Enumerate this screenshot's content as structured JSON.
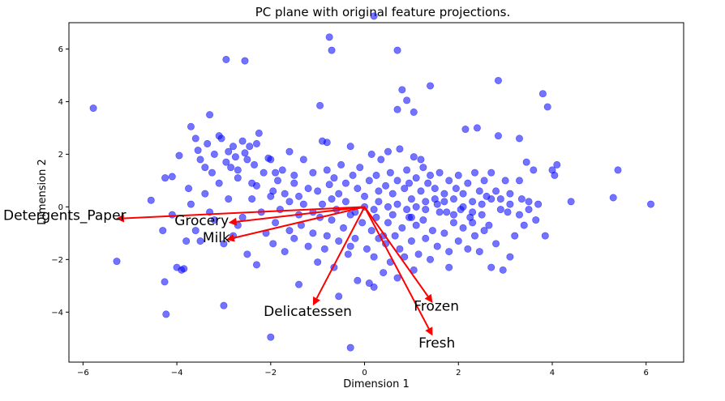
{
  "chart_data": {
    "type": "scatter",
    "title": "PC plane with original feature projections.",
    "xlabel": "Dimension 1",
    "ylabel": "Dimension 2",
    "xlim": [
      -6.3,
      6.8
    ],
    "ylim": [
      -5.9,
      7.0
    ],
    "xticks": [
      -6,
      -4,
      -2,
      0,
      2,
      4,
      6
    ],
    "yticks": [
      -4,
      -2,
      0,
      2,
      4,
      6
    ],
    "grid": false,
    "point_color": "#0000ff",
    "arrow_color": "#ff0000",
    "points": [
      [
        -5.78,
        3.75
      ],
      [
        -5.28,
        -2.07
      ],
      [
        -4.55,
        0.25
      ],
      [
        -4.26,
        -2.85
      ],
      [
        -4.23,
        -4.08
      ],
      [
        -4.25,
        1.1
      ],
      [
        -4.1,
        1.15
      ],
      [
        -4.0,
        -2.3
      ],
      [
        -3.9,
        -2.4
      ],
      [
        -3.85,
        -2.35
      ],
      [
        -3.95,
        1.95
      ],
      [
        -3.75,
        0.7
      ],
      [
        -3.7,
        3.05
      ],
      [
        -3.6,
        2.6
      ],
      [
        -3.55,
        2.15
      ],
      [
        -3.5,
        1.8
      ],
      [
        -3.4,
        1.5
      ],
      [
        -3.35,
        2.4
      ],
      [
        -3.3,
        3.5
      ],
      [
        -3.25,
        1.3
      ],
      [
        -3.2,
        2.0
      ],
      [
        -3.1,
        2.7
      ],
      [
        -3.05,
        2.6
      ],
      [
        -2.95,
        1.7
      ],
      [
        -2.9,
        2.1
      ],
      [
        -2.85,
        1.5
      ],
      [
        -2.8,
        2.3
      ],
      [
        -2.75,
        1.9
      ],
      [
        -2.7,
        1.4
      ],
      [
        -2.6,
        2.5
      ],
      [
        -2.55,
        2.05
      ],
      [
        -2.5,
        1.8
      ],
      [
        -2.45,
        2.3
      ],
      [
        -2.4,
        0.9
      ],
      [
        -2.35,
        1.6
      ],
      [
        -2.3,
        2.4
      ],
      [
        -2.25,
        2.8
      ],
      [
        -2.15,
        1.3
      ],
      [
        -2.05,
        1.85
      ],
      [
        -2.0,
        1.8
      ],
      [
        -1.95,
        0.6
      ],
      [
        -1.85,
        1.0
      ],
      [
        -1.75,
        1.4
      ],
      [
        -1.7,
        0.5
      ],
      [
        -1.6,
        2.1
      ],
      [
        -1.5,
        1.2
      ],
      [
        -1.4,
        0.4
      ],
      [
        -1.3,
        1.8
      ],
      [
        -1.2,
        0.7
      ],
      [
        -1.1,
        1.3
      ],
      [
        -1.0,
        0.6
      ],
      [
        -0.9,
        2.5
      ],
      [
        -0.8,
        1.4
      ],
      [
        -0.75,
        0.85
      ],
      [
        -0.65,
        1.1
      ],
      [
        -0.55,
        0.5
      ],
      [
        -0.5,
        1.6
      ],
      [
        -0.4,
        0.9
      ],
      [
        -0.3,
        2.3
      ],
      [
        -0.25,
        1.2
      ],
      [
        -0.15,
        0.7
      ],
      [
        -0.1,
        1.5
      ],
      [
        0.0,
        0.4
      ],
      [
        0.1,
        1.0
      ],
      [
        0.15,
        2.0
      ],
      [
        0.25,
        1.2
      ],
      [
        0.3,
        0.6
      ],
      [
        0.35,
        1.8
      ],
      [
        0.45,
        0.8
      ],
      [
        0.5,
        2.1
      ],
      [
        0.55,
        1.3
      ],
      [
        0.6,
        0.5
      ],
      [
        0.7,
        1.0
      ],
      [
        0.75,
        2.2
      ],
      [
        0.85,
        0.7
      ],
      [
        0.9,
        1.4
      ],
      [
        0.95,
        0.9
      ],
      [
        1.0,
        0.3
      ],
      [
        1.05,
        1.9
      ],
      [
        1.1,
        1.1
      ],
      [
        1.2,
        0.6
      ],
      [
        1.25,
        1.5
      ],
      [
        1.3,
        0.2
      ],
      [
        1.35,
        0.9
      ],
      [
        1.4,
        1.2
      ],
      [
        1.5,
        0.7
      ],
      [
        1.55,
        0.1
      ],
      [
        1.6,
        1.3
      ],
      [
        1.7,
        0.5
      ],
      [
        1.75,
        -0.2
      ],
      [
        1.8,
        1.0
      ],
      [
        1.9,
        0.3
      ],
      [
        1.95,
        0.7
      ],
      [
        2.0,
        1.2
      ],
      [
        2.05,
        -0.1
      ],
      [
        2.1,
        0.5
      ],
      [
        2.15,
        2.95
      ],
      [
        2.2,
        0.9
      ],
      [
        2.3,
        0.2
      ],
      [
        2.35,
        1.3
      ],
      [
        2.4,
        3.0
      ],
      [
        2.45,
        0.6
      ],
      [
        2.5,
        -0.3
      ],
      [
        2.55,
        1.0
      ],
      [
        2.6,
        0.4
      ],
      [
        2.65,
        -0.7
      ],
      [
        2.7,
        1.3
      ],
      [
        2.8,
        0.6
      ],
      [
        2.85,
        2.7
      ],
      [
        2.85,
        4.8
      ],
      [
        2.9,
        0.3
      ],
      [
        3.0,
        1.0
      ],
      [
        3.05,
        -0.2
      ],
      [
        3.1,
        0.5
      ],
      [
        3.2,
        -1.1
      ],
      [
        3.3,
        2.6
      ],
      [
        3.35,
        0.3
      ],
      [
        3.4,
        -0.7
      ],
      [
        3.45,
        1.7
      ],
      [
        3.5,
        0.2
      ],
      [
        3.6,
        1.4
      ],
      [
        3.7,
        0.1
      ],
      [
        3.8,
        4.3
      ],
      [
        3.85,
        -1.1
      ],
      [
        3.9,
        3.8
      ],
      [
        4.0,
        1.4
      ],
      [
        4.05,
        1.2
      ],
      [
        4.1,
        1.6
      ],
      [
        4.4,
        0.2
      ],
      [
        5.3,
        0.35
      ],
      [
        5.4,
        1.4
      ],
      [
        6.1,
        0.1
      ],
      [
        0.2,
        7.25
      ],
      [
        -0.75,
        6.45
      ],
      [
        -0.7,
        5.95
      ],
      [
        -2.95,
        5.6
      ],
      [
        -2.55,
        5.55
      ],
      [
        0.7,
        5.95
      ],
      [
        1.4,
        4.6
      ],
      [
        0.8,
        4.45
      ],
      [
        0.9,
        4.05
      ],
      [
        0.7,
        3.7
      ],
      [
        1.05,
        3.6
      ],
      [
        -0.95,
        3.85
      ],
      [
        -0.8,
        2.45
      ],
      [
        -3.0,
        -3.75
      ],
      [
        -2.0,
        -4.95
      ],
      [
        -1.4,
        -2.95
      ],
      [
        -1.6,
        -0.9
      ],
      [
        -1.9,
        -0.6
      ],
      [
        -1.95,
        -1.4
      ],
      [
        -1.7,
        -1.7
      ],
      [
        -1.5,
        -1.2
      ],
      [
        -1.35,
        -0.7
      ],
      [
        -1.2,
        -1.5
      ],
      [
        -1.1,
        -1.0
      ],
      [
        -1.0,
        -2.1
      ],
      [
        -0.95,
        -0.4
      ],
      [
        -0.85,
        -1.6
      ],
      [
        -0.8,
        -1.1
      ],
      [
        -0.7,
        -0.5
      ],
      [
        -0.65,
        -2.3
      ],
      [
        -0.55,
        -1.3
      ],
      [
        -0.45,
        -0.8
      ],
      [
        -0.35,
        -1.8
      ],
      [
        -0.3,
        -0.3
      ],
      [
        -0.2,
        -1.2
      ],
      [
        -0.15,
        -2.8
      ],
      [
        -0.05,
        -0.6
      ],
      [
        0.05,
        -1.6
      ],
      [
        0.1,
        -2.9
      ],
      [
        0.15,
        -0.9
      ],
      [
        0.2,
        -1.9
      ],
      [
        0.25,
        -0.4
      ],
      [
        0.3,
        -1.2
      ],
      [
        0.4,
        -2.5
      ],
      [
        0.45,
        -1.4
      ],
      [
        0.5,
        -0.6
      ],
      [
        0.55,
        -2.1
      ],
      [
        0.6,
        -0.3
      ],
      [
        0.65,
        -1.1
      ],
      [
        0.7,
        -2.7
      ],
      [
        0.75,
        -1.6
      ],
      [
        0.8,
        -0.8
      ],
      [
        0.85,
        -1.9
      ],
      [
        0.95,
        -0.4
      ],
      [
        1.0,
        -1.3
      ],
      [
        1.05,
        -2.4
      ],
      [
        1.1,
        -0.7
      ],
      [
        1.15,
        -1.8
      ],
      [
        1.25,
        -0.5
      ],
      [
        1.3,
        -1.2
      ],
      [
        1.4,
        -2.0
      ],
      [
        1.45,
        -0.9
      ],
      [
        1.55,
        -1.5
      ],
      [
        1.6,
        -0.2
      ],
      [
        1.7,
        -1.0
      ],
      [
        1.8,
        -1.7
      ],
      [
        1.9,
        -0.6
      ],
      [
        2.0,
        -1.3
      ],
      [
        2.1,
        -0.8
      ],
      [
        2.2,
        -1.6
      ],
      [
        2.25,
        -0.4
      ],
      [
        2.35,
        -1.1
      ],
      [
        2.45,
        -1.7
      ],
      [
        2.55,
        -0.9
      ],
      [
        2.7,
        -2.3
      ],
      [
        2.8,
        -1.4
      ],
      [
        2.95,
        -2.4
      ],
      [
        3.1,
        -1.9
      ],
      [
        0.2,
        -3.05
      ],
      [
        -0.3,
        -5.35
      ],
      [
        -0.55,
        -3.4
      ],
      [
        -2.3,
        -2.2
      ],
      [
        -3.5,
        -1.3
      ],
      [
        -2.7,
        -0.7
      ],
      [
        -2.5,
        -1.8
      ],
      [
        -2.2,
        -0.2
      ],
      [
        -2.8,
        -1.1
      ],
      [
        -3.2,
        -0.5
      ],
      [
        -3.0,
        -1.4
      ],
      [
        -2.9,
        0.3
      ],
      [
        -2.6,
        -0.4
      ],
      [
        -2.4,
        0.3
      ],
      [
        -2.1,
        -1.0
      ],
      [
        -2.0,
        0.4
      ],
      [
        -1.8,
        -0.1
      ],
      [
        -1.6,
        0.2
      ],
      [
        -1.4,
        -0.3
      ],
      [
        -1.3,
        0.1
      ],
      [
        -1.1,
        -0.2
      ],
      [
        -0.9,
        0.1
      ],
      [
        -0.7,
        0.3
      ],
      [
        -0.6,
        -0.1
      ],
      [
        -0.4,
        0.2
      ],
      [
        -0.2,
        -0.2
      ],
      [
        0.0,
        0.0
      ],
      [
        0.2,
        -0.1
      ],
      [
        0.3,
        0.2
      ],
      [
        0.5,
        0.0
      ],
      [
        0.7,
        0.1
      ],
      [
        0.9,
        -0.1
      ],
      [
        1.1,
        0.0
      ],
      [
        1.3,
        -0.1
      ],
      [
        1.5,
        0.3
      ],
      [
        1.7,
        0.2
      ],
      [
        1.9,
        -0.3
      ],
      [
        2.1,
        0.0
      ],
      [
        2.3,
        -0.2
      ],
      [
        2.5,
        0.1
      ],
      [
        2.7,
        0.3
      ],
      [
        2.9,
        -0.1
      ],
      [
        3.1,
        0.1
      ],
      [
        3.3,
        -0.3
      ],
      [
        3.5,
        -0.1
      ],
      [
        3.65,
        -0.5
      ],
      [
        3.3,
        1.0
      ],
      [
        1.2,
        1.8
      ],
      [
        -3.6,
        -0.9
      ],
      [
        -3.8,
        -1.3
      ],
      [
        -4.1,
        -0.3
      ],
      [
        -3.7,
        0.1
      ],
      [
        -4.3,
        -0.9
      ],
      [
        -3.4,
        0.5
      ],
      [
        -3.1,
        0.9
      ],
      [
        -3.3,
        -0.2
      ],
      [
        -2.7,
        1.1
      ],
      [
        -2.3,
        0.8
      ],
      [
        -1.9,
        1.3
      ],
      [
        -1.5,
        0.9
      ],
      [
        -0.3,
        -1.5
      ],
      [
        1.8,
        -2.3
      ],
      [
        0.4,
        -1.1
      ],
      [
        1.0,
        -0.4
      ],
      [
        2.3,
        -0.6
      ]
    ],
    "arrows": [
      {
        "name": "Detergents_Paper",
        "dx": -5.3,
        "dy": -0.45,
        "label_x": -7.7,
        "label_y": -0.5
      },
      {
        "name": "Grocery",
        "dx": -2.9,
        "dy": -0.6,
        "label_x": -4.05,
        "label_y": -0.7
      },
      {
        "name": "Milk",
        "dx": -2.95,
        "dy": -1.25,
        "label_x": -3.45,
        "label_y": -1.35
      },
      {
        "name": "Delicatessen",
        "dx": -1.1,
        "dy": -3.75,
        "label_x": -2.15,
        "label_y": -4.15
      },
      {
        "name": "Frozen",
        "dx": 1.45,
        "dy": -3.65,
        "label_x": 1.05,
        "label_y": -3.95
      },
      {
        "name": "Fresh",
        "dx": 1.45,
        "dy": -4.9,
        "label_x": 1.15,
        "label_y": -5.35
      }
    ]
  }
}
